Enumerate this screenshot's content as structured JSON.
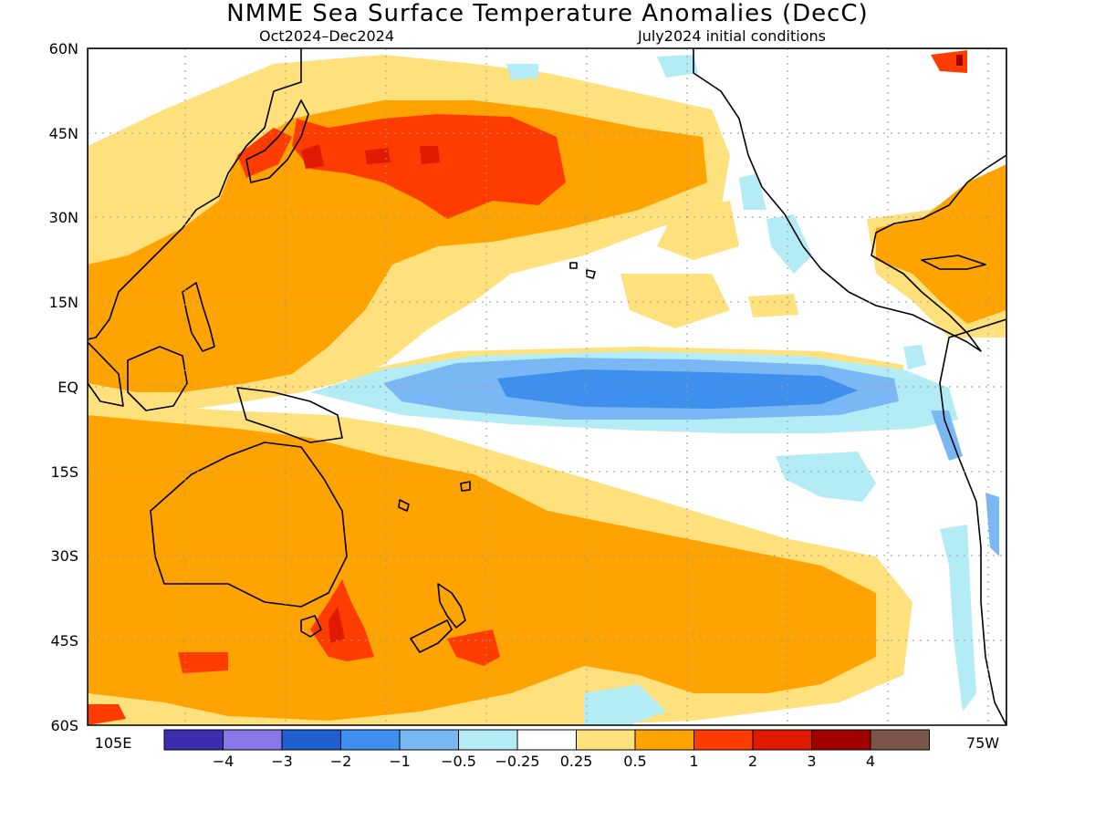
{
  "title": "NMME Sea Surface Temperature Anomalies (DecC)",
  "subtitle_left": "Oct2024–Dec2024",
  "subtitle_right": "July2024 initial conditions",
  "lat_labels": [
    "60N",
    "45N",
    "30N",
    "15N",
    "EQ",
    "15S",
    "30S",
    "45S",
    "60S"
  ],
  "lon_labels": {
    "left": "105E",
    "right": "75W"
  },
  "colorbar": {
    "colors": [
      "#3c2eb0",
      "#8877e6",
      "#1f5fd0",
      "#3f8fee",
      "#7ab8f5",
      "#b4ecf5",
      "#ffffff",
      "#fee07d",
      "#ffa300",
      "#ff3c00",
      "#e01900",
      "#a00000",
      "#7a5548"
    ],
    "labels": [
      "−4",
      "−3",
      "−2",
      "−1",
      "−0.5",
      "−0.25",
      "0.25",
      "0.5",
      "1",
      "2",
      "3",
      "4"
    ]
  },
  "anomaly_colors": {
    "cool_strong": "#3f8fee",
    "cool_mid": "#7ab8f5",
    "cool_weak": "#b4ecf5",
    "warm_weak": "#fee07d",
    "warm_mid": "#ffa300",
    "warm_strong": "#ff3c00",
    "warm_vstrong": "#e01900",
    "warm_extreme": "#a00000"
  }
}
